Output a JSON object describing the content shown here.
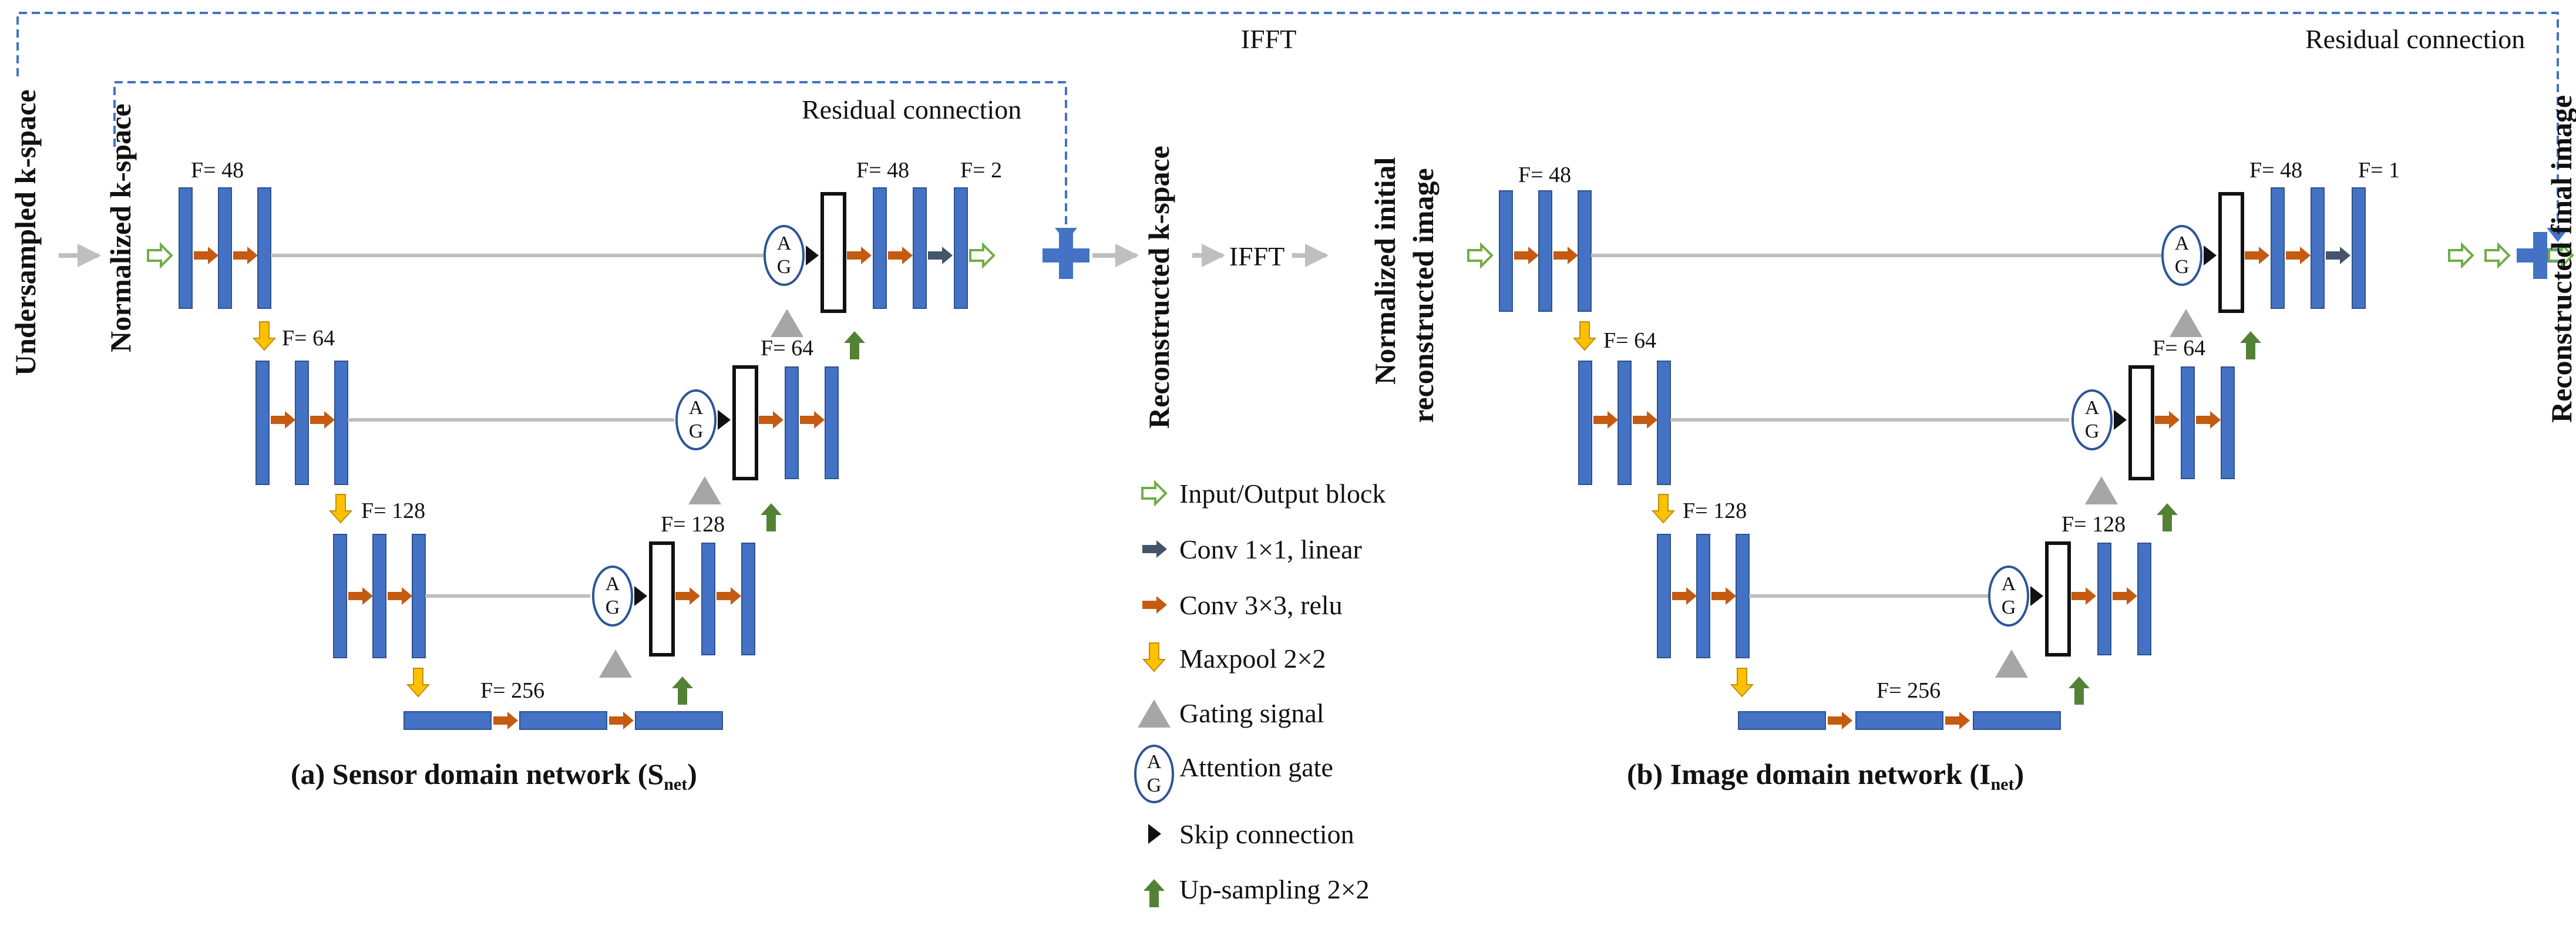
{
  "labels": {
    "undersampled": "Undersampled k-space",
    "normalized_kspace": "Normalized k-space",
    "reconstructed_kspace": "Reconstructed k-space",
    "normalized_initial_1": "Normalized initial",
    "normalized_initial_2": "reconstructed image",
    "reconstructed_final": "Reconstructed final image",
    "ifft_top": "IFFT",
    "ifft_mid": "IFFT",
    "residual_1": "Residual connection",
    "residual_2": "Residual connection"
  },
  "filters": {
    "s48": "F= 48",
    "s64": "F= 64",
    "s128": "F= 128",
    "s256": "F= 256",
    "s_up128": "F= 128",
    "s_up64": "F= 64",
    "s_up48": "F= 48",
    "s_out": "F= 2",
    "i48": "F= 48",
    "i64": "F= 64",
    "i128": "F= 128",
    "i256": "F= 256",
    "i_up128": "F= 128",
    "i_up64": "F= 64",
    "i_up48": "F= 48",
    "i_out": "F= 1"
  },
  "captions": {
    "sensor": "(a) Sensor domain network (S",
    "sensor_sub": "net",
    "image": "(b) Image domain network (I",
    "image_sub": "net",
    "close": ")"
  },
  "ag": {
    "a": "A",
    "g": "G"
  },
  "legend": [
    {
      "key": "io",
      "label": "Input/Output  block"
    },
    {
      "key": "conv1",
      "label": "Conv 1×1, linear"
    },
    {
      "key": "conv3",
      "label": "Conv 3×3, relu"
    },
    {
      "key": "pool",
      "label": "Maxpool 2×2"
    },
    {
      "key": "gate",
      "label": "Gating signal"
    },
    {
      "key": "ag",
      "label": "Attention gate"
    },
    {
      "key": "skip",
      "label": "Skip connection"
    },
    {
      "key": "up",
      "label": "Up-sampling 2×2"
    }
  ],
  "colors": {
    "block": "#4472C4",
    "block_edge": "#2F528F",
    "conv3": "#C55A11",
    "conv1": "#44546A",
    "pool": "#FFC000",
    "up": "#548235",
    "io": "#70AD47",
    "gate": "#A6A6A6",
    "line": "#BFBFBF",
    "dashed": "#4472C4",
    "ag_edge": "#2E5597"
  }
}
